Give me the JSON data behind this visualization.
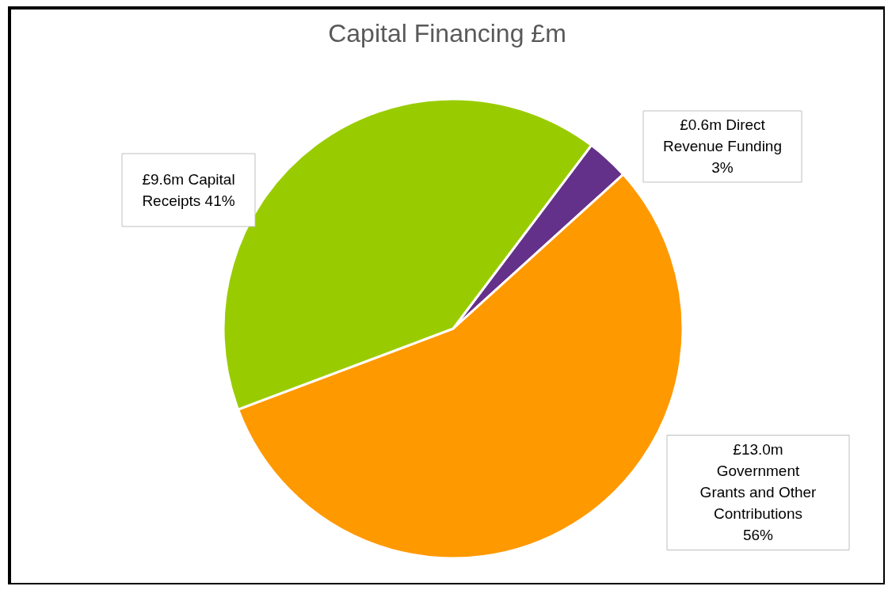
{
  "chart_data": {
    "type": "pie",
    "title": "Capital Financing £m",
    "categories": [
      "£0.6m Direct Revenue Funding 3%",
      "£13.0m Government Grants and Other Contributions 56%",
      "£9.6m Capital Receipts 41%"
    ],
    "values": [
      3,
      56,
      41
    ],
    "colors": [
      "#64318a",
      "#ff9900",
      "#99cc00"
    ]
  }
}
